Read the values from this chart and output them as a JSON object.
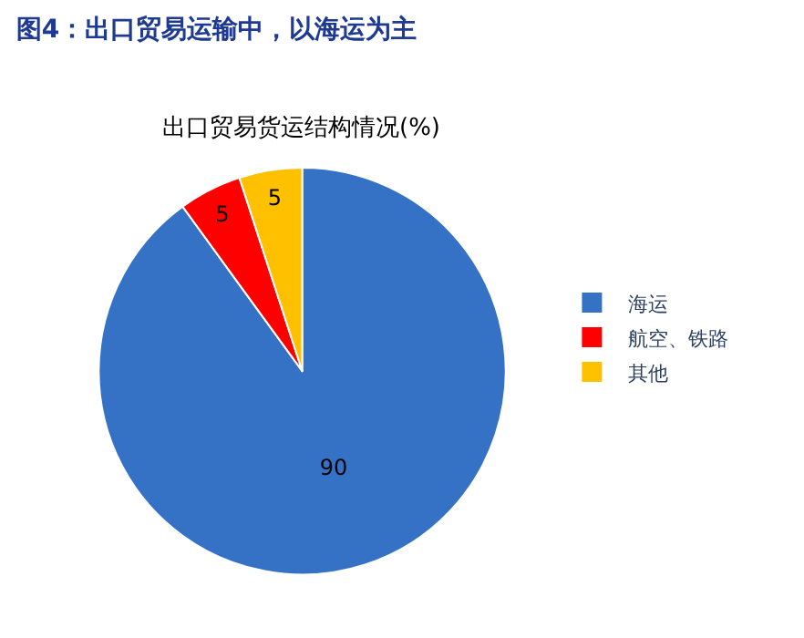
{
  "chart_data": {
    "type": "pie",
    "title": "图4：出口贸易运输中，以海运为主",
    "subtitle": "出口贸易货运结构情况(%)",
    "categories": [
      "海运",
      "航空、铁路",
      "其他"
    ],
    "values": [
      90,
      5,
      5
    ],
    "colors": [
      "#3572c6",
      "#ff0000",
      "#ffc000"
    ],
    "data_labels": true,
    "legend": "right"
  }
}
